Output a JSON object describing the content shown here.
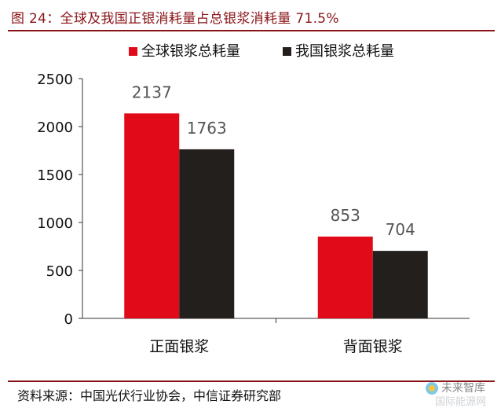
{
  "figure": {
    "title": "图 24：全球及我国正银消耗量占总银浆消耗量 71.5%",
    "source": "资料来源：中国光伏行业协会，中信证券研究部",
    "watermark": "未来智库",
    "watermark_sub": "国际能源网"
  },
  "chart_data": {
    "type": "bar",
    "categories": [
      "正面银浆",
      "背面银浆"
    ],
    "series": [
      {
        "name": "全球银浆总耗量",
        "values": [
          2137,
          853
        ],
        "color": "#e00a18"
      },
      {
        "name": "我国银浆总耗量",
        "values": [
          1763,
          704
        ],
        "color": "#231f1c"
      }
    ],
    "ylim": [
      0,
      2500
    ],
    "yticks": [
      0,
      500,
      1000,
      1500,
      2000,
      2500
    ],
    "grid": false,
    "legend": "top-center",
    "data_labels": true
  }
}
